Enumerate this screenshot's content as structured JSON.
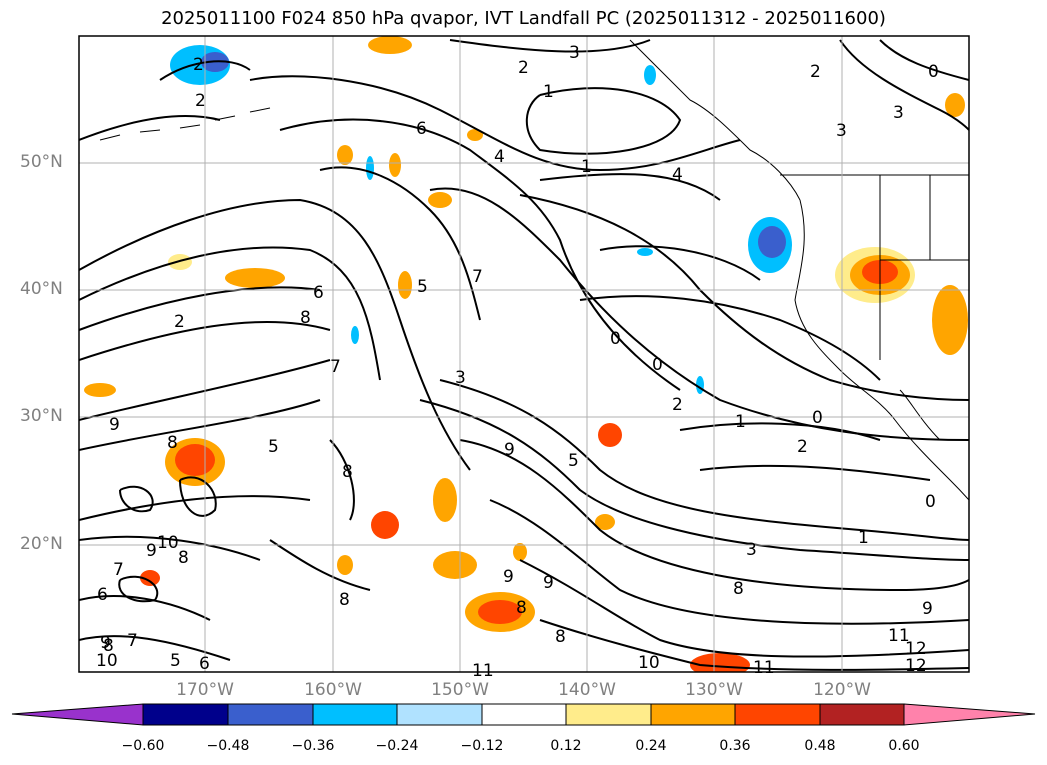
{
  "title": "2025011100 F024 850 hPa qvapor, IVT Landfall PC (2025011312 - 2025011600)",
  "lat_labels": [
    "50°N",
    "40°N",
    "30°N",
    "20°N"
  ],
  "lon_labels": [
    "170°W",
    "160°W",
    "150°W",
    "140°W",
    "130°W",
    "120°W"
  ],
  "colorbar": {
    "colors": [
      "#9932cc",
      "#00008b",
      "#3a5fcd",
      "#00bfff",
      "#b0e2ff",
      "#ffffff",
      "#ffec8b",
      "#ffa500",
      "#ff4500",
      "#b22222",
      "#ff82ab"
    ],
    "tick_labels": [
      "−0.60",
      "−0.48",
      "−0.36",
      "−0.24",
      "−0.12",
      "0.12",
      "0.24",
      "0.36",
      "0.48",
      "0.60"
    ]
  },
  "contour_labels": [
    "2",
    "2",
    "3",
    "2",
    "1",
    "6",
    "4",
    "1",
    "4",
    "2",
    "0",
    "3",
    "3",
    "2",
    "7",
    "6",
    "5",
    "8",
    "7",
    "3",
    "0",
    "0",
    "2",
    "1",
    "0",
    "2",
    "9",
    "8",
    "5",
    "5",
    "8",
    "9",
    "10",
    "7",
    "6",
    "8",
    "9",
    "8",
    "9",
    "9",
    "8",
    "8",
    "1",
    "3",
    "8",
    "9",
    "11",
    "12",
    "12",
    "10",
    "11",
    "11",
    "10",
    "9",
    "8",
    "7",
    "6",
    "5",
    "0"
  ]
}
